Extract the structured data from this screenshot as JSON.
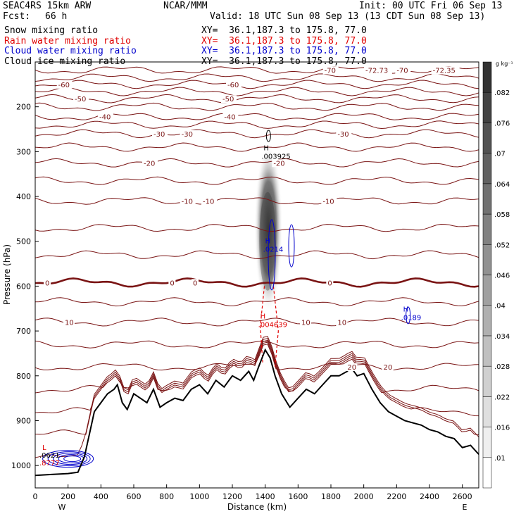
{
  "header": {
    "model": "SEAC4RS 15km ARW",
    "center": "NCAR/MMM",
    "init": "Init: 00 UTC Fri 06 Sep 13",
    "fcst_label": "Fcst:",
    "fcst_value": "66 h",
    "valid": "Valid: 18 UTC Sun 08 Sep 13 (13 CDT Sun 08 Sep 13)"
  },
  "fields": [
    {
      "name": "Snow mixing ratio",
      "xy": "XY=  36.1,187.3 to 175.8, 77.0",
      "color": "#000000"
    },
    {
      "name": "Rain water mixing ratio",
      "xy": "XY=  36.1,187.3 to 175.8, 77.0",
      "color": "#e00000"
    },
    {
      "name": "Cloud water mixing ratio",
      "xy": "XY=  36.1,187.3 to 175.8, 77.0",
      "color": "#0000cc"
    },
    {
      "name": "Cloud ice mixing ratio",
      "xy": "XY=  36.1,187.3 to 175.8, 77.0",
      "color": "#000000"
    }
  ],
  "chart_data": {
    "type": "cross-section",
    "xlabel": "Distance (km)",
    "ylabel": "Pressure (hPa)",
    "xlim": [
      0,
      2700
    ],
    "ylim": [
      1050,
      100
    ],
    "x_ticks": [
      "0",
      "200",
      "400",
      "600",
      "800",
      "1000",
      "1200",
      "1400",
      "1600",
      "1800",
      "2000",
      "2200",
      "2400",
      "2600"
    ],
    "y_ticks": [
      "200",
      "300",
      "400",
      "500",
      "600",
      "700",
      "800",
      "900",
      "1000"
    ],
    "x_ends": {
      "left": "W",
      "right": "E"
    },
    "temperature_contours": [
      {
        "value": -70,
        "pressure": 118,
        "labels": [
          "-70",
          "-72.73",
          "-70",
          "-72.35"
        ]
      },
      {
        "value": -60,
        "pressure": 150,
        "labels": [
          "-60",
          "-60"
        ]
      },
      {
        "value": -50,
        "pressure": 182,
        "labels": [
          "-50",
          "-50"
        ]
      },
      {
        "value": -40,
        "pressure": 222,
        "labels": [
          "-40",
          "-40"
        ]
      },
      {
        "value": -30,
        "pressure": 260,
        "labels": [
          "-30",
          "-30",
          "-30"
        ]
      },
      {
        "value": -20,
        "pressure": 325,
        "labels": [
          "-20",
          "-20"
        ]
      },
      {
        "value": -10,
        "pressure": 410,
        "labels": [
          "-10",
          "-10",
          "-10"
        ]
      },
      {
        "value": 0,
        "pressure": 592,
        "labels": [
          "0",
          "0",
          "0",
          "0"
        ]
      },
      {
        "value": 10,
        "pressure": 680,
        "labels": [
          "10",
          "10",
          "10"
        ]
      },
      {
        "value": 20,
        "pressure": 780,
        "labels": [
          "20",
          "20"
        ]
      }
    ],
    "terrain_km_hpa": [
      [
        0,
        1022
      ],
      [
        100,
        1020
      ],
      [
        200,
        1018
      ],
      [
        260,
        1015
      ],
      [
        300,
        980
      ],
      [
        360,
        880
      ],
      [
        400,
        860
      ],
      [
        440,
        840
      ],
      [
        480,
        830
      ],
      [
        500,
        820
      ],
      [
        530,
        860
      ],
      [
        560,
        875
      ],
      [
        600,
        840
      ],
      [
        640,
        850
      ],
      [
        680,
        860
      ],
      [
        720,
        830
      ],
      [
        760,
        870
      ],
      [
        800,
        860
      ],
      [
        850,
        850
      ],
      [
        900,
        855
      ],
      [
        950,
        830
      ],
      [
        1000,
        820
      ],
      [
        1050,
        840
      ],
      [
        1100,
        810
      ],
      [
        1150,
        825
      ],
      [
        1200,
        800
      ],
      [
        1250,
        810
      ],
      [
        1300,
        790
      ],
      [
        1330,
        810
      ],
      [
        1360,
        780
      ],
      [
        1400,
        742
      ],
      [
        1430,
        760
      ],
      [
        1460,
        800
      ],
      [
        1500,
        840
      ],
      [
        1550,
        870
      ],
      [
        1600,
        850
      ],
      [
        1650,
        830
      ],
      [
        1700,
        840
      ],
      [
        1750,
        820
      ],
      [
        1800,
        800
      ],
      [
        1850,
        800
      ],
      [
        1900,
        790
      ],
      [
        1920,
        780
      ],
      [
        1960,
        800
      ],
      [
        2000,
        795
      ],
      [
        2050,
        830
      ],
      [
        2100,
        860
      ],
      [
        2150,
        880
      ],
      [
        2200,
        890
      ],
      [
        2250,
        900
      ],
      [
        2300,
        905
      ],
      [
        2350,
        910
      ],
      [
        2400,
        920
      ],
      [
        2450,
        925
      ],
      [
        2500,
        935
      ],
      [
        2550,
        940
      ],
      [
        2600,
        960
      ],
      [
        2650,
        955
      ],
      [
        2700,
        975
      ]
    ],
    "maxima": [
      {
        "field": "Cloud ice mixing ratio",
        "symbol": "H",
        "value": ".003925"
      },
      {
        "field": "Cloud water mixing ratio",
        "symbol": "H",
        "value": ".0214"
      },
      {
        "field": "Rain water mixing ratio",
        "symbol": "H",
        "value": ".004639"
      },
      {
        "field": "Cloud water mixing ratio",
        "symbol": "H",
        "value": ".0189"
      }
    ],
    "corner_labels": [
      "L",
      ".0621",
      ".8777"
    ],
    "colorbar": {
      "unit": "g kg⁻¹",
      "levels": [
        ".01",
        ".016",
        ".022",
        ".028",
        ".034",
        ".04",
        ".046",
        ".052",
        ".058",
        ".064",
        ".07",
        ".076",
        ".082"
      ]
    }
  }
}
